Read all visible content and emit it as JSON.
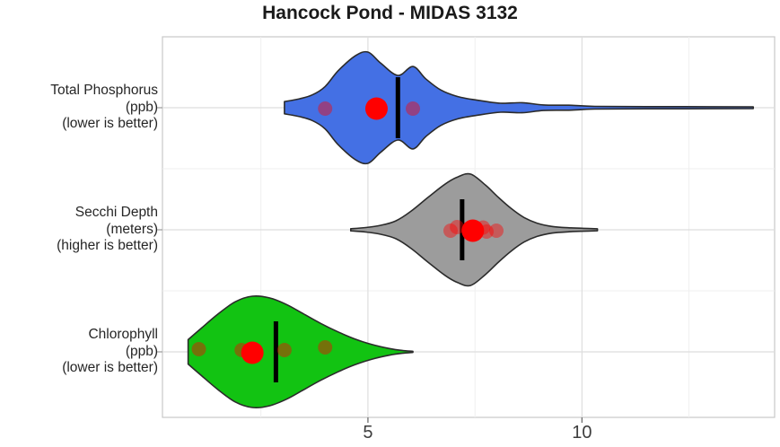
{
  "page": {
    "title": "Hancock Pond - MIDAS 3132"
  },
  "header_icons": [
    {
      "name": "water-sampler",
      "bg_color": "#B153B1",
      "glyph_color": "#F2C500"
    },
    {
      "name": "thermometer",
      "bg_color": "#3D57D6",
      "glyph_color": "#FFFFFF"
    }
  ],
  "chart_data": {
    "type": "violin",
    "orientation": "horizontal",
    "title": "Hancock Pond - MIDAS 3132",
    "xlabel": "",
    "ylabel": "",
    "x_axis": {
      "range": [
        0.2,
        14.5
      ],
      "ticks": [
        {
          "value": 5,
          "label": "5"
        },
        {
          "value": 10,
          "label": "10"
        }
      ],
      "minor_gridlines": [
        2.5,
        7.5,
        12.5
      ]
    },
    "style": {
      "point_color": "#FF0000",
      "obs_opacity": 0.42,
      "median_color": "#000000",
      "outline_color": "#2b2b2b",
      "major_grid_color": "#dddddd",
      "minor_grid_color": "#efefef",
      "panel_border_color": "#c8c8c8",
      "axis_text_color": "#3d3d3d"
    },
    "series": [
      {
        "name": "total-phosphorus",
        "label_lines": [
          "Total Phosphorus",
          "(ppb)",
          "(lower is better)"
        ],
        "color": "#4470E4",
        "range": [
          3.05,
          14.0
        ],
        "median": 5.7,
        "mean": 5.2,
        "observations": [
          {
            "value": 4.0,
            "dy": 1
          },
          {
            "value": 6.05,
            "dy": 1
          }
        ],
        "density_profile": [
          [
            3.05,
            0.11
          ],
          [
            3.4,
            0.16
          ],
          [
            3.7,
            0.23
          ],
          [
            4.0,
            0.38
          ],
          [
            4.3,
            0.66
          ],
          [
            4.7,
            0.93
          ],
          [
            5.0,
            1.0
          ],
          [
            5.3,
            0.8
          ],
          [
            5.7,
            0.58
          ],
          [
            6.05,
            0.74
          ],
          [
            6.35,
            0.52
          ],
          [
            6.7,
            0.32
          ],
          [
            7.1,
            0.2
          ],
          [
            7.6,
            0.13
          ],
          [
            8.1,
            0.08
          ],
          [
            8.6,
            0.09
          ],
          [
            9.1,
            0.05
          ],
          [
            9.7,
            0.045
          ],
          [
            10.3,
            0.025
          ],
          [
            11.5,
            0.02
          ],
          [
            13.0,
            0.018
          ],
          [
            14.0,
            0.015
          ]
        ]
      },
      {
        "name": "secchi-depth",
        "label_lines": [
          "Secchi Depth",
          "(meters)",
          "(higher is better)"
        ],
        "color": "#9C9C9C",
        "range": [
          4.6,
          10.36
        ],
        "median": 7.2,
        "mean": 7.45,
        "observations": [
          {
            "value": 6.93,
            "dy": 1
          },
          {
            "value": 7.08,
            "dy": -3
          },
          {
            "value": 7.69,
            "dy": -2.5
          },
          {
            "value": 7.77,
            "dy": 2
          },
          {
            "value": 8.0,
            "dy": 1
          }
        ],
        "density_profile": [
          [
            4.6,
            0.02
          ],
          [
            4.95,
            0.04
          ],
          [
            5.3,
            0.08
          ],
          [
            5.65,
            0.16
          ],
          [
            6.0,
            0.33
          ],
          [
            6.4,
            0.58
          ],
          [
            6.8,
            0.82
          ],
          [
            7.1,
            0.95
          ],
          [
            7.4,
            1.0
          ],
          [
            7.75,
            0.8
          ],
          [
            8.05,
            0.58
          ],
          [
            8.35,
            0.38
          ],
          [
            8.65,
            0.22
          ],
          [
            8.95,
            0.12
          ],
          [
            9.3,
            0.06
          ],
          [
            9.7,
            0.035
          ],
          [
            10.05,
            0.025
          ],
          [
            10.36,
            0.018
          ]
        ]
      },
      {
        "name": "chlorophyll",
        "label_lines": [
          "Chlorophyll",
          "(ppb)",
          "(lower is better)"
        ],
        "color": "#12C312",
        "range": [
          0.8,
          6.05
        ],
        "median": 2.85,
        "mean": 2.3,
        "observations": [
          {
            "value": 1.05,
            "dy": -3
          },
          {
            "value": 2.05,
            "dy": -2
          },
          {
            "value": 3.05,
            "dy": -2
          },
          {
            "value": 4.0,
            "dy": -5
          }
        ],
        "density_profile": [
          [
            0.8,
            0.22
          ],
          [
            1.1,
            0.42
          ],
          [
            1.5,
            0.68
          ],
          [
            1.9,
            0.9
          ],
          [
            2.3,
            1.0
          ],
          [
            2.7,
            0.97
          ],
          [
            3.1,
            0.85
          ],
          [
            3.5,
            0.68
          ],
          [
            3.9,
            0.51
          ],
          [
            4.3,
            0.36
          ],
          [
            4.7,
            0.23
          ],
          [
            5.1,
            0.13
          ],
          [
            5.5,
            0.06
          ],
          [
            5.8,
            0.025
          ],
          [
            6.05,
            0.004
          ]
        ]
      }
    ]
  }
}
